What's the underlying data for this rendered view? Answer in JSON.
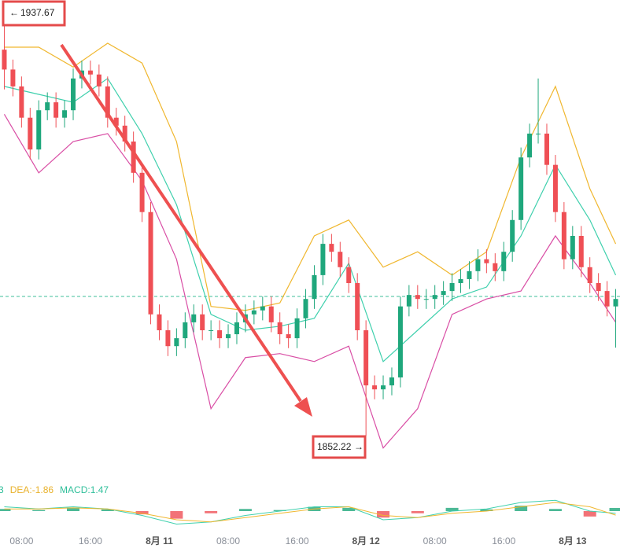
{
  "chart_data": {
    "type": "candlestick",
    "xlim": [
      -2.5,
      69.5
    ],
    "xticks": [
      {
        "value": 0,
        "label": "08:00"
      },
      {
        "value": 8,
        "label": "16:00"
      },
      {
        "value": 16,
        "label": "8月 11"
      },
      {
        "value": 24,
        "label": "08:00"
      },
      {
        "value": 32,
        "label": "16:00"
      },
      {
        "value": 40,
        "label": "8月 12"
      },
      {
        "value": 48,
        "label": "08:00"
      },
      {
        "value": 56,
        "label": "16:00"
      },
      {
        "value": 64,
        "label": "8月 13"
      }
    ],
    "ylim": [
      1845,
      1940
    ],
    "up_color": "#1fa77c",
    "down_color": "#ef4f55",
    "candles": {
      "x": [
        -2,
        -1,
        0,
        1,
        2,
        3,
        4,
        5,
        6,
        7,
        8,
        9,
        10,
        11,
        12,
        13,
        14,
        15,
        16,
        17,
        18,
        19,
        20,
        21,
        22,
        23,
        24,
        25,
        26,
        27,
        28,
        29,
        30,
        31,
        32,
        33,
        34,
        35,
        36,
        37,
        38,
        39,
        40,
        41,
        42,
        43,
        44,
        45,
        46,
        47,
        48,
        49,
        50,
        51,
        52,
        53,
        54,
        55,
        56,
        57,
        58,
        59,
        60,
        61,
        62,
        63,
        64,
        65,
        66,
        67,
        68,
        69
      ],
      "open": [
        1930.0,
        1926.0,
        1922.6,
        1916.3,
        1909.9,
        1917.8,
        1919.4,
        1916.3,
        1917.8,
        1924.2,
        1925.8,
        1925.0,
        1922.6,
        1916.3,
        1914.7,
        1911.5,
        1905.2,
        1897.3,
        1876.7,
        1873.5,
        1870.3,
        1871.9,
        1875.1,
        1876.7,
        1873.5,
        1873.5,
        1871.9,
        1872.7,
        1875.1,
        1876.7,
        1877.5,
        1878.3,
        1875.1,
        1872.7,
        1871.9,
        1875.9,
        1879.8,
        1884.6,
        1890.9,
        1889.3,
        1886.2,
        1883.0,
        1873.5,
        1862.4,
        1861.6,
        1862.4,
        1864.0,
        1878.3,
        1880.6,
        1879.8,
        1879.8,
        1880.6,
        1881.4,
        1883.0,
        1883.8,
        1885.4,
        1887.8,
        1887.0,
        1885.4,
        1889.3,
        1895.7,
        1908.3,
        1913.1,
        1913.1,
        1906.8,
        1897.3,
        1887.8,
        1892.5,
        1886.2,
        1883.0,
        1881.4,
        1878.3
      ],
      "high": [
        1937.67,
        1928.0,
        1924.6,
        1918.3,
        1919.8,
        1921.4,
        1921.4,
        1919.8,
        1926.2,
        1927.8,
        1927.8,
        1927.0,
        1924.6,
        1918.3,
        1916.7,
        1913.5,
        1907.2,
        1899.3,
        1878.7,
        1875.5,
        1873.9,
        1877.1,
        1878.7,
        1878.7,
        1875.5,
        1875.5,
        1874.7,
        1877.1,
        1878.7,
        1879.5,
        1880.3,
        1880.3,
        1877.1,
        1874.7,
        1877.9,
        1881.8,
        1886.6,
        1892.9,
        1892.9,
        1891.3,
        1888.2,
        1885.0,
        1875.5,
        1864.4,
        1864.4,
        1866.0,
        1880.3,
        1882.6,
        1882.6,
        1881.8,
        1882.6,
        1883.4,
        1885.0,
        1885.8,
        1887.4,
        1889.8,
        1889.8,
        1889.0,
        1891.3,
        1897.7,
        1910.3,
        1915.1,
        1924.2,
        1915.1,
        1908.8,
        1899.3,
        1894.5,
        1894.5,
        1888.2,
        1885.0,
        1883.4,
        1881.8
      ],
      "low": [
        1922.0,
        1920.6,
        1914.3,
        1907.9,
        1907.9,
        1915.8,
        1914.3,
        1914.3,
        1915.8,
        1922.2,
        1923.0,
        1920.6,
        1914.3,
        1912.7,
        1909.5,
        1903.2,
        1895.3,
        1874.7,
        1871.5,
        1868.3,
        1868.3,
        1869.9,
        1873.1,
        1871.5,
        1871.5,
        1869.9,
        1869.9,
        1870.7,
        1873.1,
        1874.7,
        1875.5,
        1873.1,
        1870.7,
        1869.9,
        1869.9,
        1873.9,
        1877.8,
        1882.6,
        1887.3,
        1884.2,
        1881.0,
        1871.5,
        1852.22,
        1859.6,
        1859.6,
        1860.4,
        1862.0,
        1876.3,
        1877.8,
        1877.8,
        1877.8,
        1878.6,
        1879.4,
        1881.0,
        1881.8,
        1883.4,
        1885.0,
        1883.4,
        1883.4,
        1887.3,
        1893.7,
        1906.3,
        1911.1,
        1904.8,
        1895.3,
        1885.8,
        1885.8,
        1884.2,
        1881.0,
        1879.4,
        1876.3,
        1870.0
      ],
      "close": [
        1926.0,
        1922.6,
        1916.3,
        1909.9,
        1917.8,
        1919.4,
        1916.3,
        1917.8,
        1924.2,
        1925.8,
        1925.0,
        1922.6,
        1916.3,
        1914.7,
        1911.5,
        1905.2,
        1897.3,
        1876.7,
        1873.5,
        1870.3,
        1871.9,
        1875.1,
        1876.7,
        1873.5,
        1873.5,
        1871.9,
        1872.7,
        1875.1,
        1876.7,
        1877.5,
        1878.3,
        1875.1,
        1872.7,
        1871.9,
        1875.9,
        1879.8,
        1884.6,
        1890.9,
        1889.3,
        1886.2,
        1883.0,
        1873.5,
        1862.4,
        1861.6,
        1862.4,
        1864.0,
        1878.3,
        1880.6,
        1879.8,
        1879.8,
        1880.6,
        1881.4,
        1883.0,
        1883.8,
        1885.4,
        1887.8,
        1887.0,
        1885.4,
        1889.3,
        1895.7,
        1908.3,
        1913.1,
        1913.1,
        1906.8,
        1897.3,
        1887.8,
        1892.5,
        1886.2,
        1883.0,
        1881.4,
        1878.3,
        1879.8
      ]
    },
    "bands": {
      "x": [
        -2,
        2,
        6,
        10,
        14,
        18,
        22,
        26,
        30,
        34,
        38,
        42,
        46,
        50,
        54,
        58,
        62,
        66,
        69
      ],
      "series": [
        {
          "color": "#f0b72f",
          "values": [
            1930.5,
            1930.5,
            1926.5,
            1931.3,
            1927.3,
            1911.5,
            1878.3,
            1877.5,
            1879.0,
            1892.5,
            1895.7,
            1886.2,
            1889.3,
            1884.6,
            1889.3,
            1908.3,
            1922.6,
            1902.0,
            1890.9
          ]
        },
        {
          "color": "#3fd0ad",
          "values": [
            1922.6,
            1921.0,
            1919.4,
            1924.2,
            1913.1,
            1898.8,
            1876.7,
            1873.5,
            1874.3,
            1875.9,
            1887.0,
            1867.2,
            1873.5,
            1879.8,
            1882.2,
            1892.5,
            1906.8,
            1895.7,
            1884.6
          ]
        },
        {
          "color": "#d94ea5",
          "values": [
            1917.0,
            1905.2,
            1911.5,
            1913.1,
            1903.6,
            1887.8,
            1857.7,
            1868.0,
            1868.8,
            1867.2,
            1870.3,
            1849.8,
            1857.7,
            1876.7,
            1879.8,
            1881.4,
            1892.5,
            1883.0,
            1875.1
          ]
        }
      ]
    },
    "last_price_line": 1880.3,
    "max_label": "1937.67",
    "min_label": "1852.22",
    "macd": {
      "ylim": [
        -8,
        8
      ],
      "labels": [
        {
          "text": "3",
          "color": "#2fbf9a"
        },
        {
          "text": "DEA:-1.86",
          "color": "#e9b22c"
        },
        {
          "text": "MACD:1.47",
          "color": "#2fbf9a"
        }
      ],
      "histogram": [
        1.0,
        0.5,
        1.5,
        0.8,
        -1.5,
        -3.5,
        -1.0,
        1.0,
        0.5,
        2.0,
        1.5,
        -3.0,
        -1.0,
        1.5,
        0.8,
        2.5,
        1.0,
        -2.5,
        1.47
      ],
      "dif": {
        "color": "#3fd0ad",
        "values": [
          2,
          1,
          2,
          1,
          -2,
          -6,
          -5,
          -2,
          0,
          2,
          2,
          -4,
          -3,
          0,
          1,
          4,
          5,
          0,
          -1
        ]
      },
      "dea": {
        "color": "#f0b72f",
        "values": [
          1,
          1,
          1.5,
          1,
          -1,
          -4,
          -5,
          -3,
          -1,
          1,
          2,
          -2,
          -3,
          -1,
          0,
          2,
          4,
          2,
          -1.86
        ]
      }
    }
  }
}
